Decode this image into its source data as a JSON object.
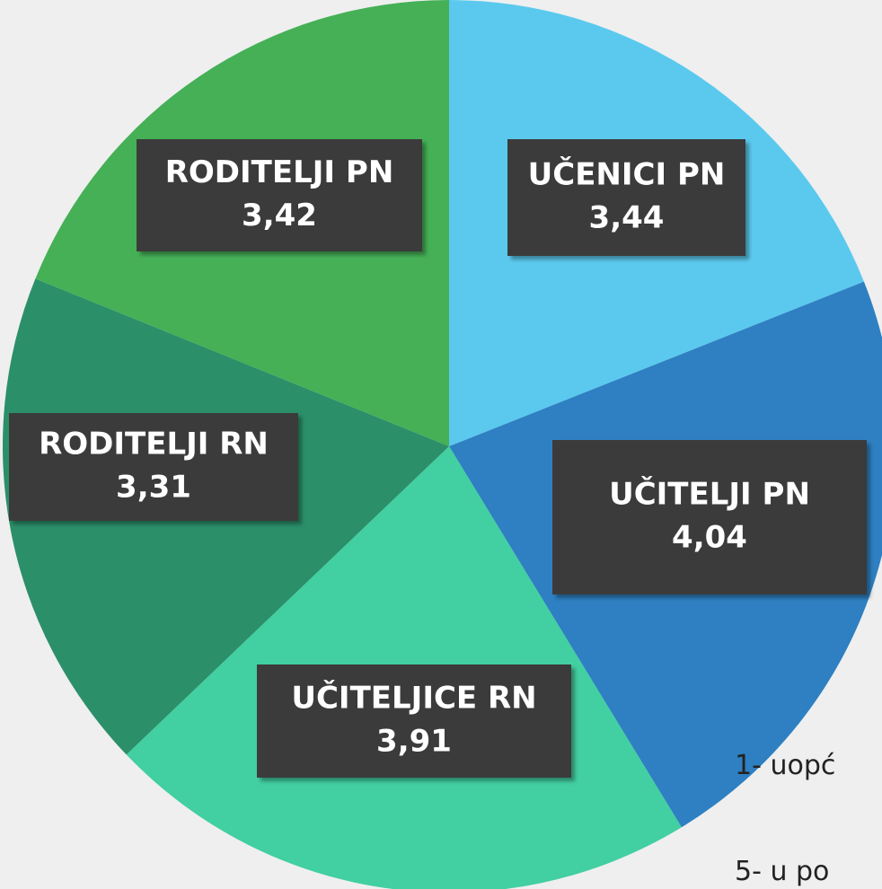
{
  "chart_data": {
    "type": "pie",
    "categories": [
      "UČENICI PN",
      "UČITELJI PN",
      "UČITELJICE RN",
      "RODITELJI RN",
      "RODITELJI PN"
    ],
    "values": [
      3.44,
      4.04,
      3.91,
      3.31,
      3.42
    ],
    "value_labels": [
      "3,44",
      "4,04",
      "3,91",
      "3,31",
      "3,42"
    ],
    "colors": [
      "#5bc9ee",
      "#2e80c2",
      "#42cfa1",
      "#2b8f6a",
      "#45b056"
    ],
    "notes": [
      "1- uopć",
      "5- u po"
    ]
  }
}
